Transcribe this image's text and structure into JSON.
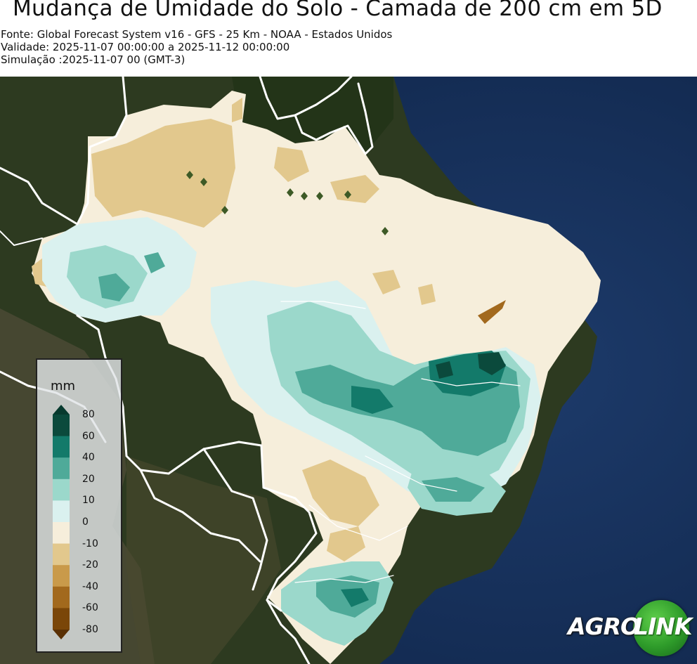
{
  "header": {
    "title": "Mudança de Umidade do Solo - Camada de 200 cm em 5D",
    "source": "Fonte: Global Forecast System v16 - GFS - 25 Km - NOAA - Estados Unidos",
    "validity": "Validade: 2025-11-07 00:00:00 a 2025-11-12 00:00:00",
    "simulation": "Simulação :2025-11-07 00 (GMT-3)"
  },
  "legend": {
    "unit": "mm",
    "ticks": [
      "80",
      "60",
      "40",
      "20",
      "10",
      "0",
      "-10",
      "-20",
      "-40",
      "-60",
      "-80"
    ],
    "bins": [
      {
        "range": "60 a 80",
        "color": "#0b4a3c"
      },
      {
        "range": "40 a 60",
        "color": "#137a6a"
      },
      {
        "range": "20 a 40",
        "color": "#4faa99"
      },
      {
        "range": "10 a 20",
        "color": "#9bd8cb"
      },
      {
        "range": "0 a 10",
        "color": "#daf1ef"
      },
      {
        "range": "-10 a 0",
        "color": "#f6eedb"
      },
      {
        "range": "-20 a -10",
        "color": "#e2c88d"
      },
      {
        "range": "-40 a -20",
        "color": "#c99a4a"
      },
      {
        "range": "-60 a -40",
        "color": "#a2691d"
      },
      {
        "range": "-80 a -60",
        "color": "#7a4608"
      }
    ],
    "extend_max_color": "#073a2e",
    "extend_min_color": "#5a3004"
  },
  "logo": {
    "part1": "AGRO",
    "part2": "LINK"
  },
  "map": {
    "region": "Brasil",
    "land_color": "#2b3b1c",
    "ocean_color": "#132d55",
    "border_color": "#ffffff"
  }
}
